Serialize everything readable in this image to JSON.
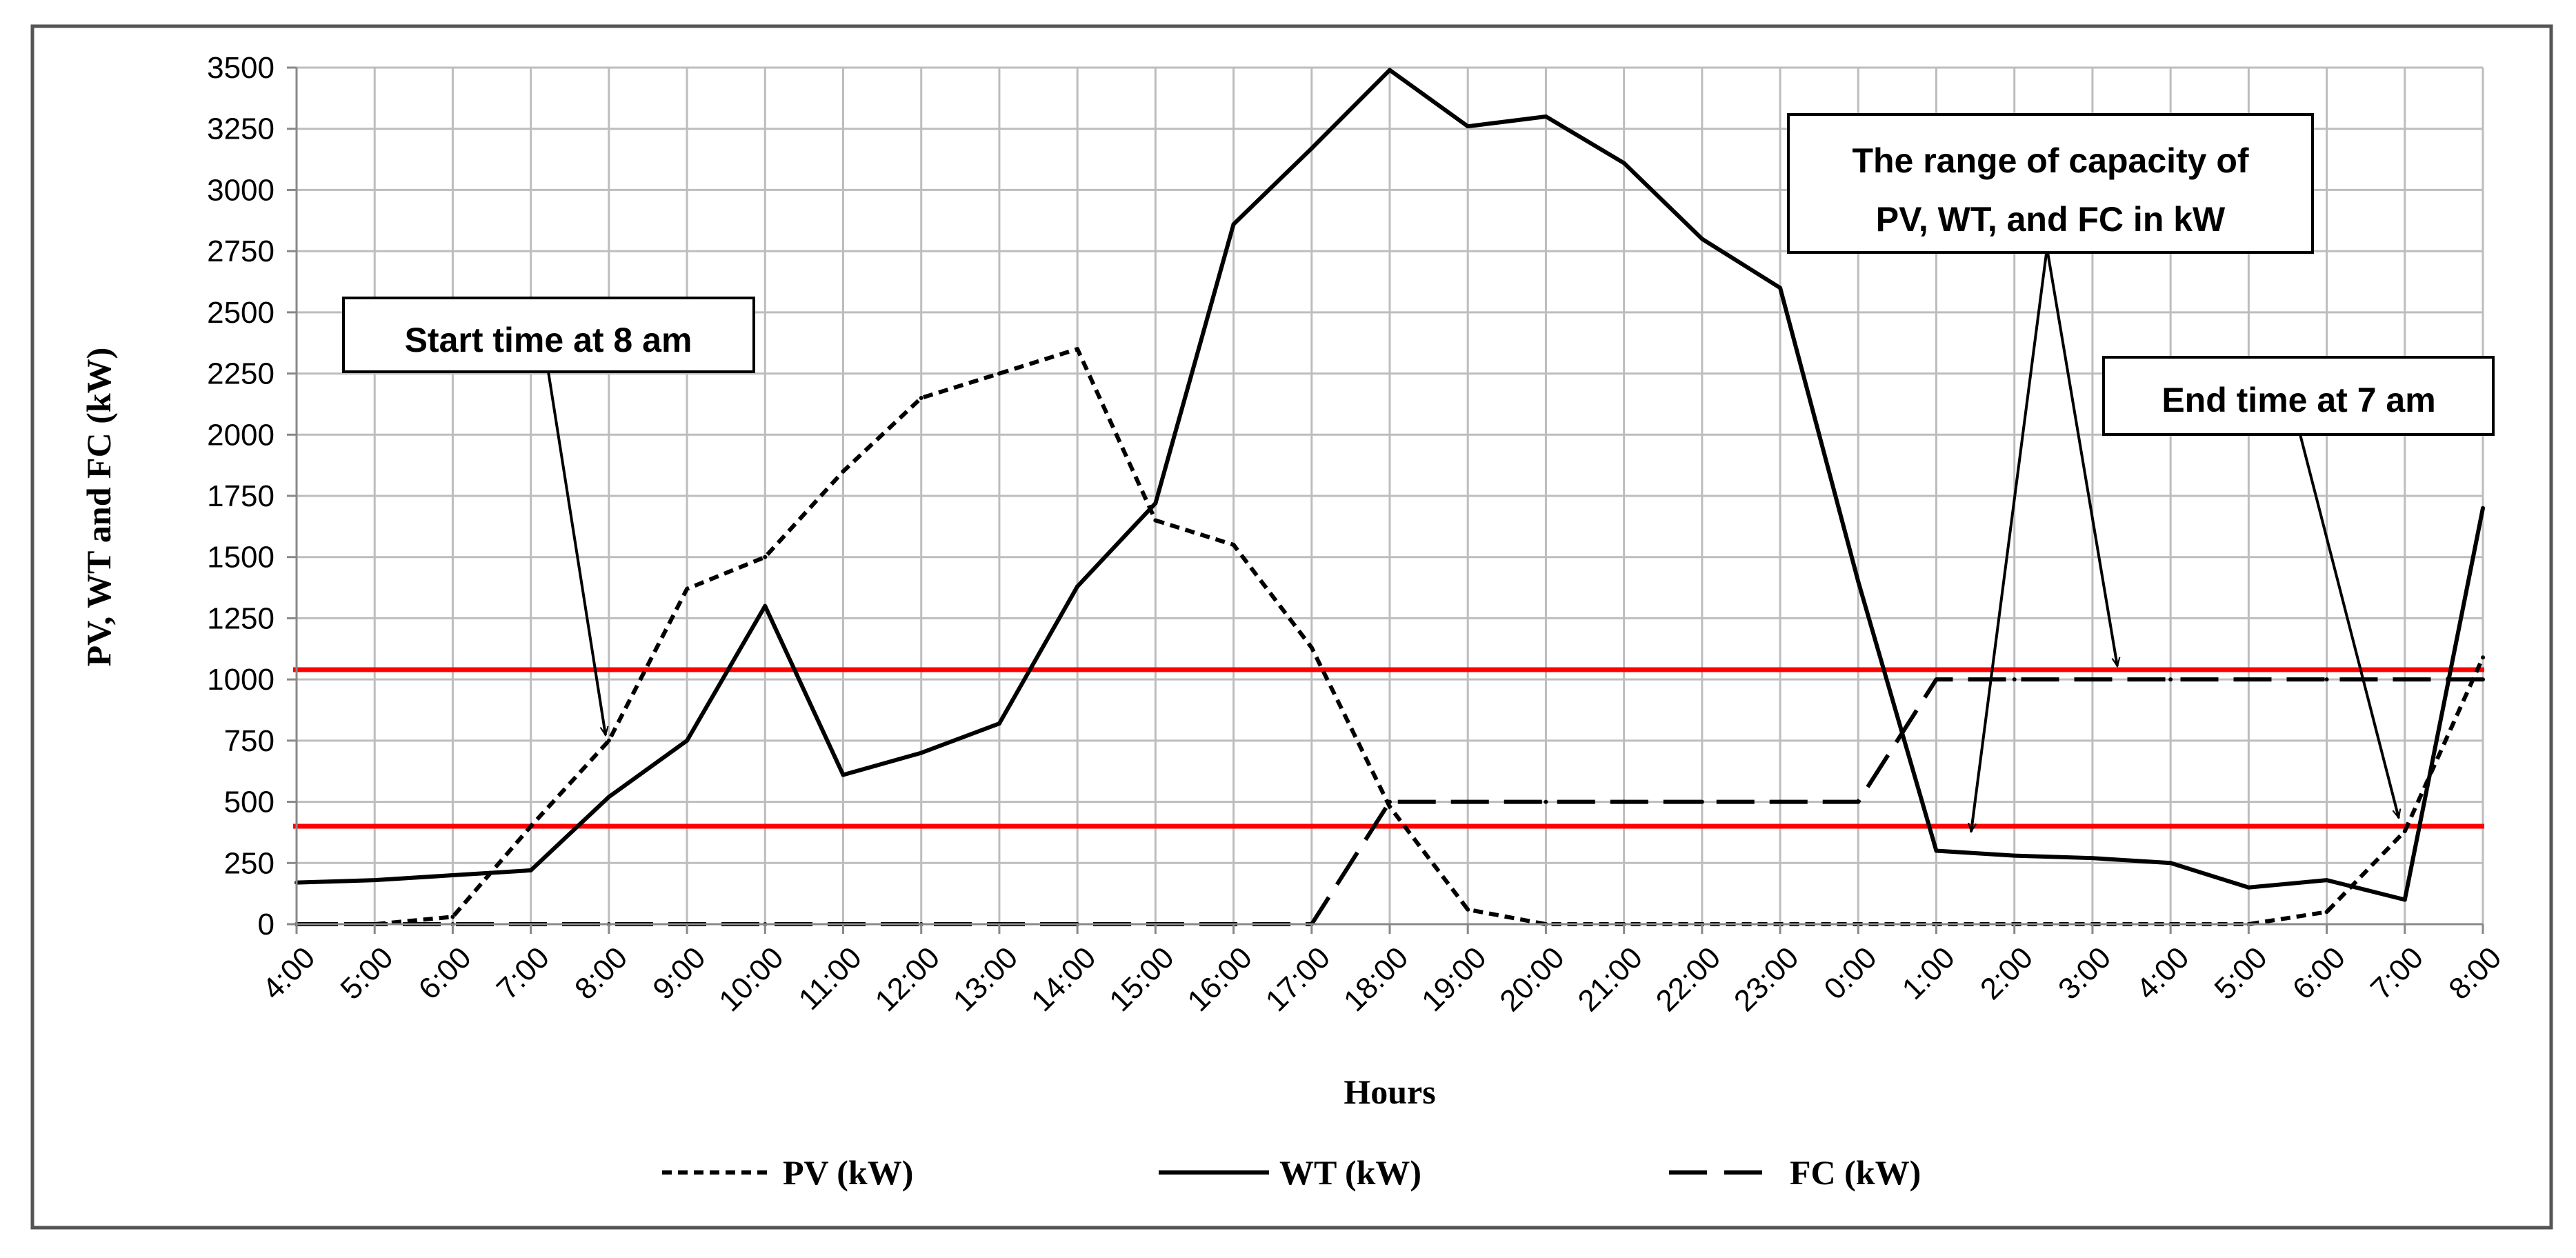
{
  "chart_data": {
    "type": "line",
    "ylabel": "PV, WT and FC (kW)",
    "xlabel": "Hours",
    "ylim": [
      0,
      3500
    ],
    "yticks": [
      0,
      250,
      500,
      750,
      1000,
      1250,
      1500,
      1750,
      2000,
      2250,
      2500,
      2750,
      3000,
      3250,
      3500
    ],
    "grid": true,
    "categories": [
      "4:00",
      "5:00",
      "6:00",
      "7:00",
      "8:00",
      "9:00",
      "10:00",
      "11:00",
      "12:00",
      "13:00",
      "14:00",
      "15:00",
      "16:00",
      "17:00",
      "18:00",
      "19:00",
      "20:00",
      "21:00",
      "22:00",
      "23:00",
      "0:00",
      "1:00",
      "2:00",
      "3:00",
      "4:00",
      "5:00",
      "6:00",
      "7:00",
      "8:00"
    ],
    "series": [
      {
        "name": "PV (kW)",
        "style": "dotted",
        "color": "#000000",
        "values": [
          0,
          0,
          30,
          400,
          750,
          1370,
          1500,
          1850,
          2150,
          2250,
          2350,
          1650,
          1550,
          1130,
          480,
          60,
          0,
          0,
          0,
          0,
          0,
          0,
          0,
          0,
          0,
          0,
          50,
          380,
          1090
        ]
      },
      {
        "name": "WT (kW)",
        "style": "solid",
        "color": "#000000",
        "values": [
          170,
          180,
          200,
          220,
          520,
          750,
          1300,
          610,
          700,
          820,
          1380,
          1720,
          2860,
          3170,
          3490,
          3260,
          3300,
          3110,
          2800,
          2600,
          1400,
          300,
          280,
          270,
          250,
          150,
          180,
          100,
          1700
        ]
      },
      {
        "name": "FC (kW)",
        "style": "long-dash",
        "color": "#000000",
        "values": [
          0,
          0,
          0,
          0,
          0,
          0,
          0,
          0,
          0,
          0,
          0,
          0,
          0,
          0,
          500,
          500,
          500,
          500,
          500,
          500,
          500,
          1000,
          1000,
          1000,
          1000,
          1000,
          1000,
          1000,
          1000
        ]
      }
    ],
    "reference_lines": [
      {
        "y": 1040,
        "color": "#ff0000"
      },
      {
        "y": 400,
        "color": "#ff0000"
      }
    ],
    "annotations": [
      {
        "text": "Start time at 8 am"
      },
      {
        "lines": [
          "The range of capacity of",
          "PV, WT, and FC in kW"
        ]
      },
      {
        "text": "End time at 7 am"
      }
    ],
    "legend_position": "bottom"
  }
}
